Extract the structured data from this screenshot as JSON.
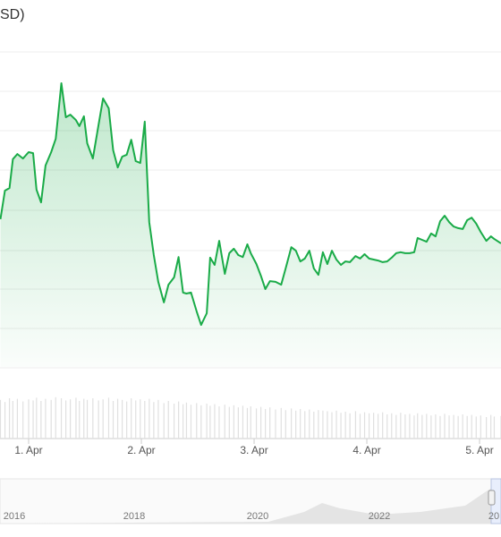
{
  "chart_data": {
    "type": "line",
    "title": "SD)",
    "x": [
      0.75,
      0.79,
      0.83,
      0.86,
      0.9,
      0.95,
      1.0,
      1.04,
      1.07,
      1.11,
      1.15,
      1.2,
      1.24,
      1.29,
      1.33,
      1.37,
      1.42,
      1.45,
      1.49,
      1.52,
      1.57,
      1.62,
      1.66,
      1.71,
      1.75,
      1.79,
      1.83,
      1.87,
      1.91,
      1.95,
      1.99,
      2.03,
      2.07,
      2.11,
      2.15,
      2.2,
      2.24,
      2.29,
      2.33,
      2.37,
      2.4,
      2.44,
      2.49,
      2.53,
      2.58,
      2.61,
      2.65,
      2.69,
      2.74,
      2.78,
      2.82,
      2.86,
      2.9,
      2.94,
      2.97,
      3.02,
      3.06,
      3.1,
      3.14,
      3.19,
      3.24,
      3.28,
      3.33,
      3.37,
      3.41,
      3.45,
      3.49,
      3.53,
      3.57,
      3.61,
      3.65,
      3.69,
      3.73,
      3.77,
      3.81,
      3.85,
      3.9,
      3.94,
      3.98,
      4.02,
      4.06,
      4.1,
      4.14,
      4.18,
      4.22,
      4.26,
      4.3,
      4.34,
      4.38,
      4.42,
      4.45,
      4.49,
      4.53,
      4.57,
      4.61,
      4.65,
      4.69,
      4.73,
      4.77,
      4.81,
      4.85,
      4.89,
      4.93,
      4.97,
      5.01,
      5.06,
      5.1,
      5.13,
      5.19
    ],
    "values": [
      46.5,
      55.5,
      56.3,
      65.4,
      67.0,
      65.6,
      67.6,
      67.3,
      55.8,
      51.8,
      63.4,
      67.6,
      71.8,
      89.3,
      78.6,
      79.4,
      77.7,
      75.8,
      78.9,
      70.4,
      65.6,
      76.1,
      84.5,
      81.4,
      68.2,
      62.8,
      66.2,
      66.8,
      71.5,
      64.8,
      64.2,
      77.2,
      45.6,
      35.2,
      26.8,
      20.3,
      25.9,
      28.2,
      34.6,
      23.4,
      23.1,
      23.4,
      17.5,
      13.2,
      16.9,
      34.4,
      32.1,
      39.7,
      29.3,
      35.8,
      37.2,
      35.2,
      34.6,
      38.6,
      35.8,
      32.4,
      28.7,
      24.5,
      27.0,
      26.8,
      25.9,
      31.0,
      37.7,
      36.6,
      33.2,
      34.1,
      36.6,
      31.0,
      29.0,
      36.1,
      32.4,
      36.6,
      33.8,
      32.1,
      33.2,
      33.0,
      34.9,
      34.1,
      35.5,
      34.1,
      33.8,
      33.5,
      33.0,
      33.2,
      34.4,
      35.8,
      36.1,
      35.8,
      35.8,
      36.1,
      40.6,
      40.0,
      39.4,
      42.0,
      41.1,
      45.9,
      47.6,
      45.6,
      44.2,
      43.7,
      43.4,
      46.2,
      47.0,
      45.1,
      42.5,
      39.7,
      41.1,
      40.3,
      38.9
    ],
    "color": "#1aab48",
    "volume": [
      72,
      68,
      75,
      70,
      74,
      69,
      73,
      71,
      76,
      70,
      74,
      72,
      77,
      75,
      71,
      73,
      76,
      70,
      74,
      72,
      75,
      71,
      73,
      76,
      70,
      74,
      72,
      69,
      75,
      71,
      73,
      70,
      74,
      68,
      72,
      66,
      70,
      65,
      69,
      64,
      67,
      63,
      66,
      62,
      65,
      61,
      64,
      60,
      63,
      59,
      62,
      58,
      61,
      57,
      60,
      56,
      59,
      55,
      58,
      54,
      57,
      53,
      56,
      52,
      55,
      51,
      54,
      50,
      53,
      52,
      51,
      49,
      52,
      48,
      50,
      47,
      51,
      46,
      49,
      47,
      48,
      46,
      49,
      45,
      47,
      44,
      48,
      45,
      46,
      43,
      47,
      44,
      46,
      43,
      45,
      42,
      46,
      43,
      44,
      42,
      45,
      42,
      44,
      41,
      43,
      40,
      44,
      41,
      42
    ],
    "volume_color": "#e0e0e0",
    "volume_ylim": [
      0,
      100
    ],
    "xlim": [
      0.746,
      5.19
    ],
    "ylim": [
      0,
      100
    ],
    "xticks": [
      {
        "value": 1,
        "label": "1. Apr"
      },
      {
        "value": 2,
        "label": "2. Apr"
      },
      {
        "value": 3,
        "label": "3. Apr"
      },
      {
        "value": 4,
        "label": "4. Apr"
      },
      {
        "value": 5,
        "label": "5. Apr"
      }
    ],
    "grid": true,
    "navigator": {
      "xticks": [
        "2016",
        "2018",
        "2020",
        "2022",
        "20"
      ]
    }
  }
}
